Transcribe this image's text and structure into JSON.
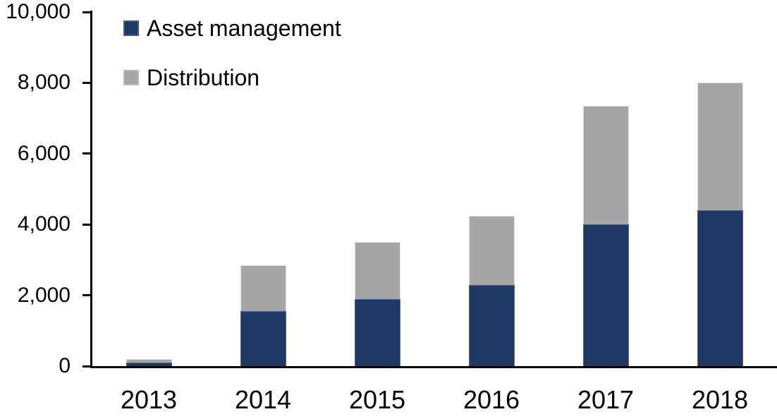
{
  "chart_data": {
    "type": "bar",
    "stacked": true,
    "title": "",
    "xlabel": "",
    "ylabel": "",
    "categories": [
      "2013",
      "2014",
      "2015",
      "2016",
      "2017",
      "2018"
    ],
    "series": [
      {
        "name": "Asset management",
        "color": "#1F3864",
        "values": [
          90,
          1550,
          1900,
          2300,
          4000,
          4400
        ]
      },
      {
        "name": "Distribution",
        "color": "#A6A6A6",
        "values": [
          100,
          1300,
          1600,
          1950,
          3350,
          3600
        ]
      }
    ],
    "totals": [
      190,
      2850,
      3500,
      4250,
      7350,
      8000
    ],
    "ylim": [
      0,
      10000
    ],
    "yticks": [
      {
        "value": 0,
        "label": "0"
      },
      {
        "value": 2000,
        "label": "2,000"
      },
      {
        "value": 4000,
        "label": "4,000"
      },
      {
        "value": 6000,
        "label": "6,000"
      },
      {
        "value": 8000,
        "label": "8,000"
      },
      {
        "value": 10000,
        "label": "10,000"
      }
    ],
    "grid": false,
    "legend_position": "top-left",
    "axis_color": "#000000",
    "background_color": "#FFFFFF"
  }
}
